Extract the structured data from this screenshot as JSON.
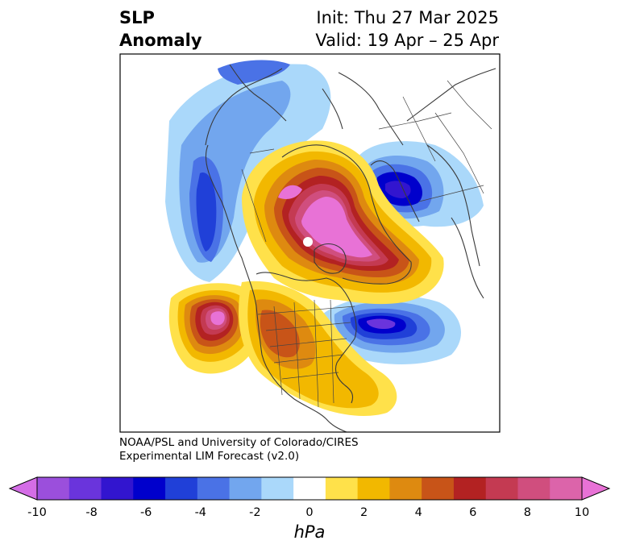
{
  "header": {
    "title_line1": "SLP",
    "title_line2": "Anomaly",
    "init_text": "Init: Thu 27 Mar 2025",
    "valid_text": "Valid: 19 Apr – 25 Apr"
  },
  "credit": {
    "line1": "NOAA/PSL and University of Colorado/CIRES",
    "line2": "Experimental LIM Forecast (v2.0)"
  },
  "colorbar": {
    "unit": "hPa",
    "ticks": [
      "-10",
      "-8",
      "-6",
      "-4",
      "-2",
      "0",
      "2",
      "4",
      "6",
      "8",
      "10"
    ],
    "colors": [
      "#d46de6",
      "#9b4fdc",
      "#6a34dc",
      "#3215cf",
      "#0000cc",
      "#2040d8",
      "#4a72e6",
      "#72a6ee",
      "#aad8fa",
      "#ffffff",
      "#ffe14a",
      "#f2b800",
      "#de8a10",
      "#c85418",
      "#b32222",
      "#c43a52",
      "#d04e7e",
      "#dc64aa",
      "#e872d6"
    ]
  }
}
